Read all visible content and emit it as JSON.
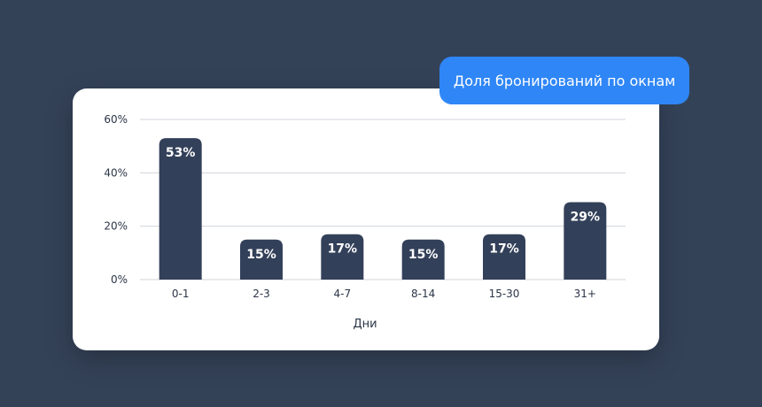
{
  "header": {
    "title": "Доля бронирований по окнам"
  },
  "colors": {
    "background": "#344258",
    "bar": "#334059",
    "accent": "#2f86f6",
    "grid": "#d0d4db"
  },
  "chart_data": {
    "type": "bar",
    "title": "Доля бронирований по окнам",
    "xlabel": "Дни",
    "ylabel": "",
    "categories": [
      "0-1",
      "2-3",
      "4-7",
      "8-14",
      "15-30",
      "31+"
    ],
    "values": [
      53,
      15,
      17,
      15,
      17,
      29
    ],
    "value_labels": [
      "53%",
      "15%",
      "17%",
      "15%",
      "17%",
      "29%"
    ],
    "y_ticks": [
      "0%",
      "20%",
      "40%",
      "60%"
    ],
    "y_tick_values": [
      0,
      20,
      40,
      60
    ],
    "ylim": [
      0,
      60
    ],
    "grid": true,
    "legend": "none"
  }
}
